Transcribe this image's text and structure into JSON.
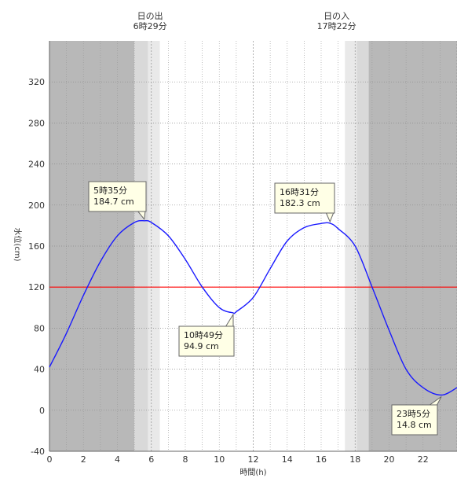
{
  "chart_data": {
    "type": "line",
    "title": "",
    "xlabel": "時間(h)",
    "ylabel": "水位(cm)",
    "xlim": [
      0,
      24
    ],
    "ylim": [
      -40,
      360
    ],
    "x_ticks": [
      0,
      2,
      4,
      6,
      8,
      10,
      12,
      14,
      16,
      18,
      20,
      22
    ],
    "y_ticks": [
      -40,
      0,
      40,
      80,
      120,
      160,
      200,
      240,
      280,
      320
    ],
    "grid": true,
    "series": [
      {
        "color": "#1a1aff",
        "x": [
          0,
          1,
          2,
          3,
          4,
          5,
          5.58,
          6,
          7,
          8,
          9,
          10,
          10.82,
          11,
          12,
          13,
          14,
          15,
          16,
          16.52,
          17,
          18,
          19,
          20,
          21,
          22,
          23.08,
          24
        ],
        "y": [
          42,
          75,
          112,
          145,
          170,
          183,
          184.7,
          183,
          170,
          147,
          120,
          100,
          94.9,
          96,
          110,
          138,
          165,
          178,
          182,
          182.3,
          177,
          160,
          120,
          78,
          40,
          22,
          14.8,
          22
        ]
      }
    ],
    "reference_line": {
      "y": 120,
      "color": "#ff0000"
    },
    "sun": {
      "sunrise": {
        "label": "日の出",
        "time_text": "6時29分",
        "hour": 6.48
      },
      "sunset": {
        "label": "日の入",
        "time_text": "17時22分",
        "hour": 17.37
      }
    },
    "shading": {
      "night_color": "#b8b8b8",
      "twilight_color": "#d9d9d9",
      "dawn_twilight_color": "#e9e9e9",
      "day_color": "#ffffff",
      "bands": [
        {
          "from": 0,
          "to": 5.0,
          "kind": "night"
        },
        {
          "from": 5.0,
          "to": 5.8,
          "kind": "twilight"
        },
        {
          "from": 5.8,
          "to": 6.5,
          "kind": "dawn"
        },
        {
          "from": 17.4,
          "to": 18.1,
          "kind": "dawn"
        },
        {
          "from": 18.1,
          "to": 18.8,
          "kind": "twilight"
        },
        {
          "from": 18.8,
          "to": 24,
          "kind": "night"
        }
      ]
    },
    "annotations": [
      {
        "time_text": "5時35分",
        "value_text": "184.7 cm",
        "x": 5.58,
        "y": 184.7,
        "side": "above"
      },
      {
        "time_text": "10時49分",
        "value_text": "94.9 cm",
        "x": 10.82,
        "y": 94.9,
        "side": "below"
      },
      {
        "time_text": "16時31分",
        "value_text": "182.3 cm",
        "x": 16.52,
        "y": 182.3,
        "side": "above"
      },
      {
        "time_text": "23時5分",
        "value_text": "14.8 cm",
        "x": 23.08,
        "y": 14.8,
        "side": "below"
      }
    ]
  }
}
